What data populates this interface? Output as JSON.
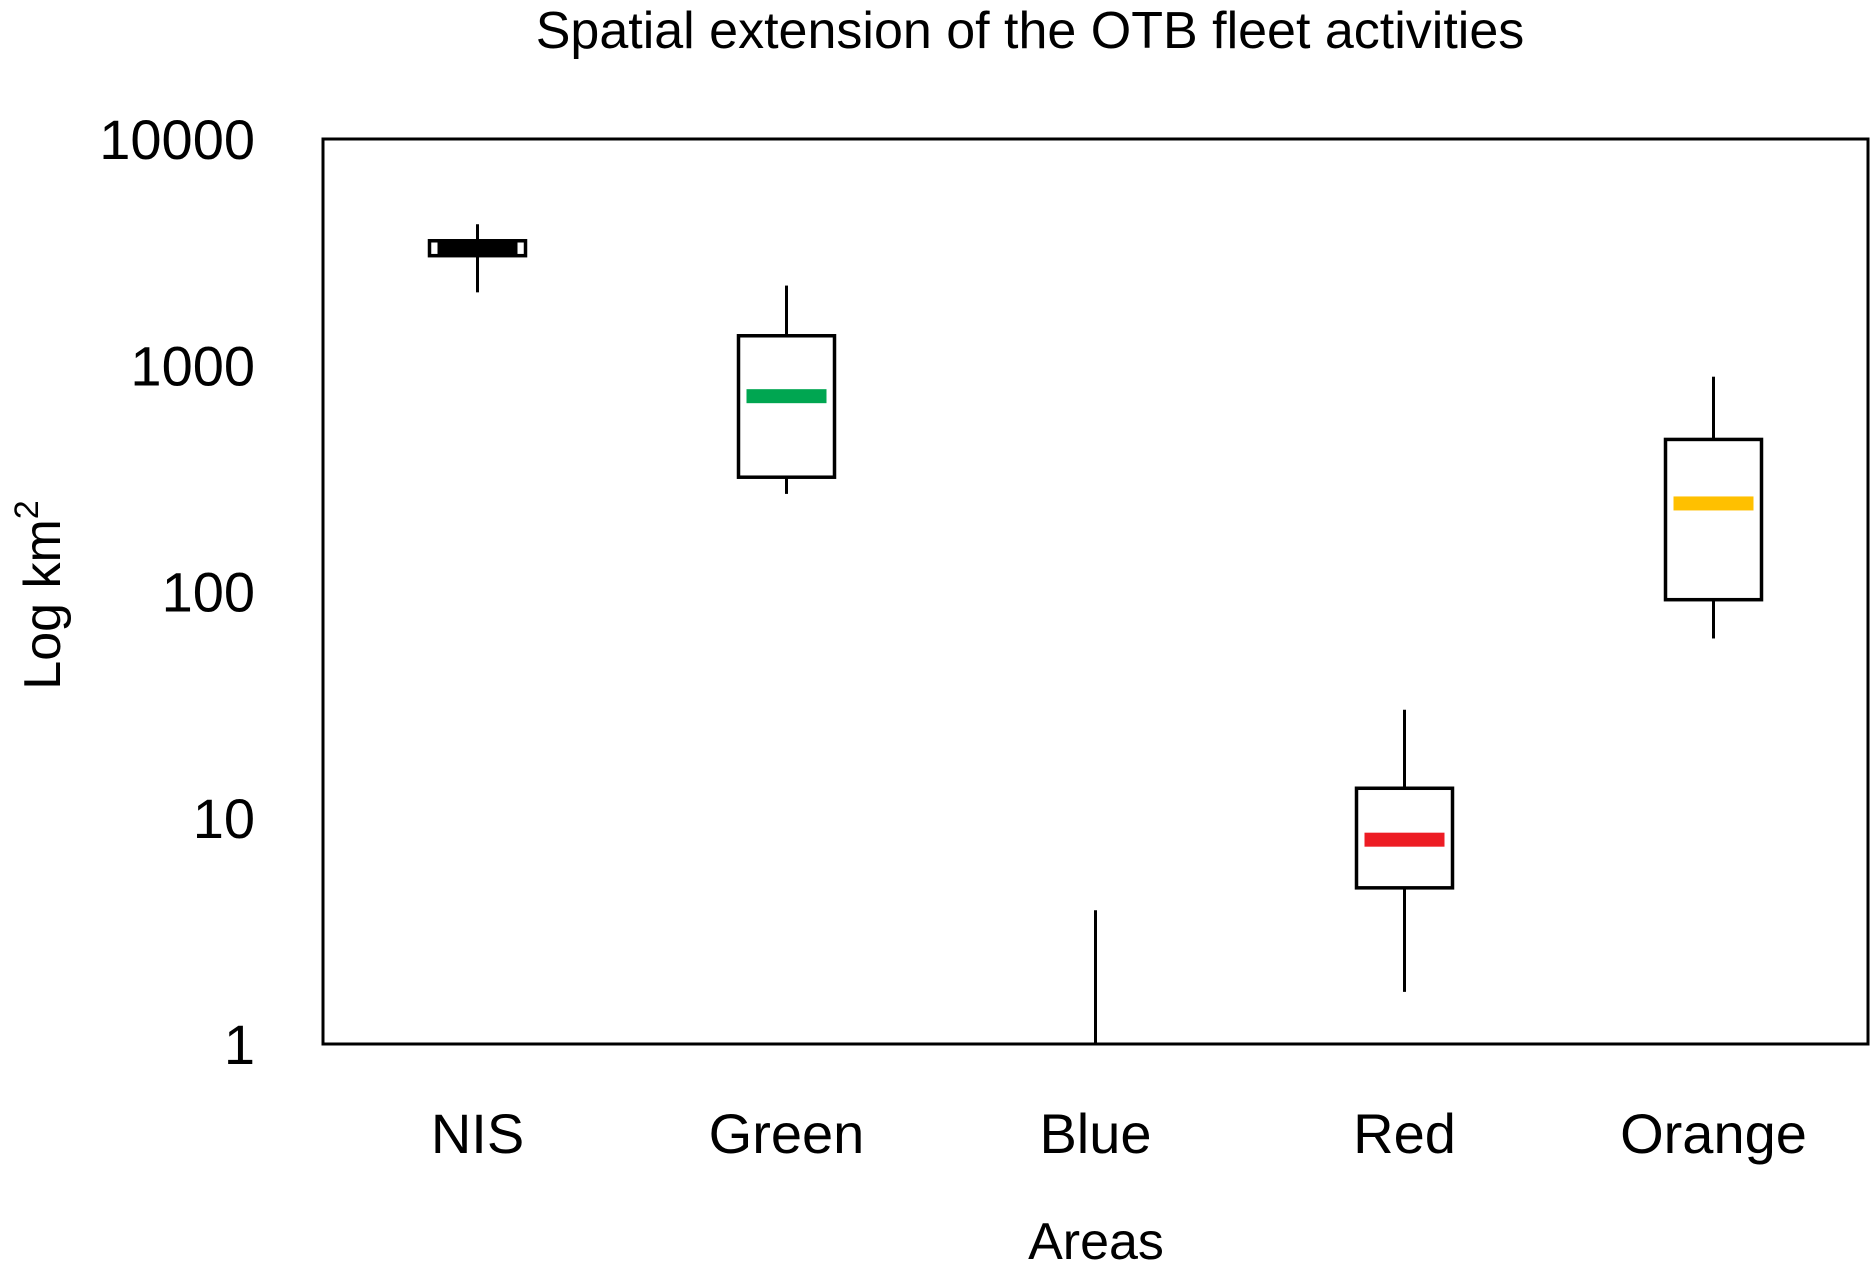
{
  "chart_data": {
    "type": "box",
    "title": "Spatial extension of the OTB fleet activities",
    "xlabel": "Areas",
    "ylabel": {
      "base": "Log km",
      "superscript": "2"
    },
    "y_scale": "log",
    "ylim": [
      1,
      10000
    ],
    "yticks": [
      1,
      10,
      100,
      1000,
      10000
    ],
    "ytick_labels": [
      "1",
      "10",
      "100",
      "1000",
      "10000"
    ],
    "grid": false,
    "categories": [
      "NIS",
      "Green",
      "Blue",
      "Red",
      "Orange"
    ],
    "boxes": [
      {
        "name": "NIS",
        "whisker_low": 2100,
        "q1": 3050,
        "median": 3250,
        "q3": 3550,
        "whisker_high": 4200,
        "median_color": "#000000"
      },
      {
        "name": "Green",
        "whisker_low": 270,
        "q1": 320,
        "median": 730,
        "q3": 1350,
        "whisker_high": 2250,
        "median_color": "#00a651"
      },
      {
        "name": "Blue",
        "whisker_low": 1,
        "q1": null,
        "median": null,
        "q3": null,
        "whisker_high": 3.9,
        "median_color": "#000000"
      },
      {
        "name": "Red",
        "whisker_low": 1.7,
        "q1": 4.9,
        "median": 8,
        "q3": 13.5,
        "whisker_high": 30,
        "median_color": "#ed1c24"
      },
      {
        "name": "Orange",
        "whisker_low": 62,
        "q1": 92,
        "median": 245,
        "q3": 470,
        "whisker_high": 890,
        "median_color": "#ffc000"
      }
    ]
  }
}
